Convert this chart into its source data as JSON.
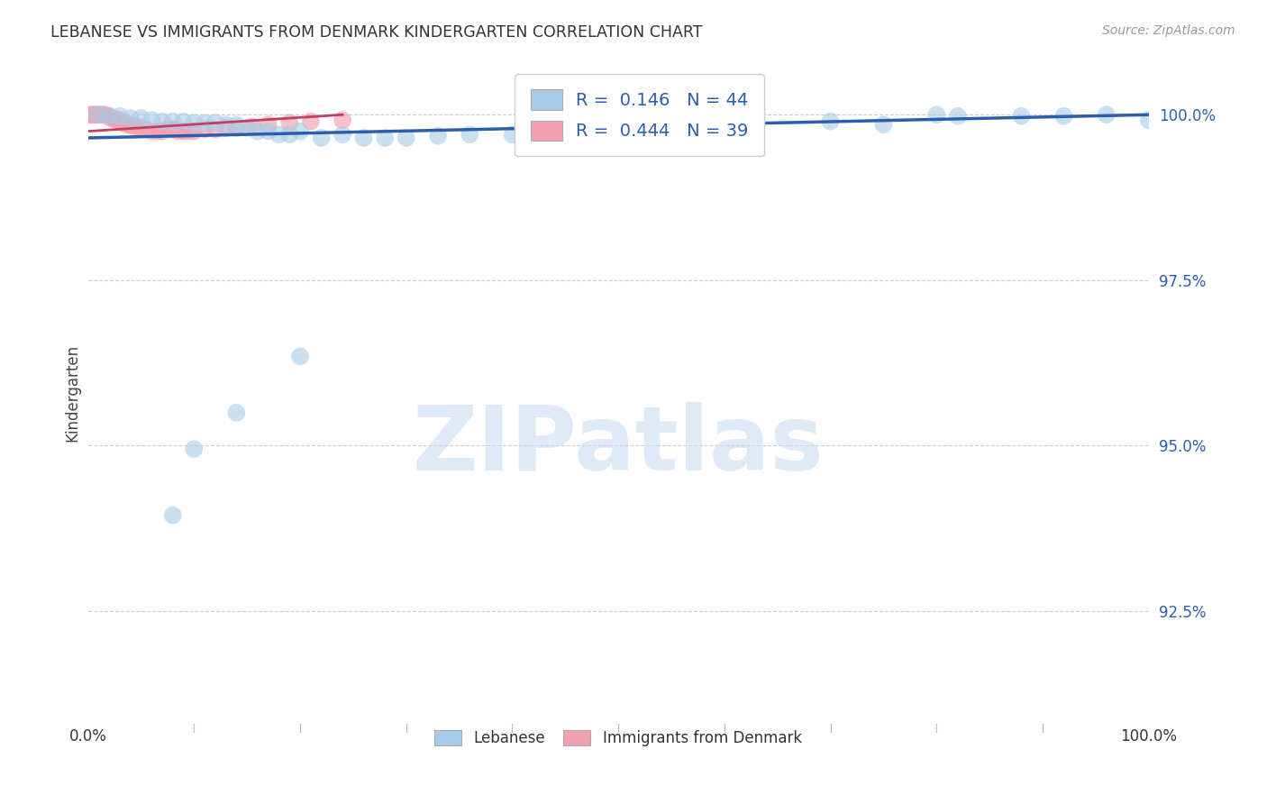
{
  "title": "LEBANESE VS IMMIGRANTS FROM DENMARK KINDERGARTEN CORRELATION CHART",
  "source": "Source: ZipAtlas.com",
  "ylabel": "Kindergarten",
  "ytick_labels": [
    "100.0%",
    "97.5%",
    "95.0%",
    "92.5%"
  ],
  "ytick_values": [
    1.0,
    0.975,
    0.95,
    0.925
  ],
  "xlim": [
    0.0,
    1.0
  ],
  "ylim": [
    0.908,
    1.008
  ],
  "legend_blue_R": "0.146",
  "legend_blue_N": "44",
  "legend_pink_R": "0.444",
  "legend_pink_N": "39",
  "blue_color": "#a8cce8",
  "pink_color": "#f4a0b0",
  "trend_blue_color": "#2b5fad",
  "trend_pink_color": "#c04060",
  "blue_scatter_x": [
    0.01,
    0.02,
    0.03,
    0.04,
    0.05,
    0.06,
    0.07,
    0.08,
    0.09,
    0.1,
    0.11,
    0.12,
    0.13,
    0.14,
    0.15,
    0.16,
    0.17,
    0.18,
    0.19,
    0.2,
    0.22,
    0.24,
    0.26,
    0.28,
    0.3,
    0.33,
    0.36,
    0.4,
    0.55,
    0.63,
    0.7,
    0.75,
    0.8,
    0.82,
    0.88,
    0.92,
    0.96,
    1.0,
    0.45,
    0.5,
    0.2,
    0.14,
    0.1,
    0.08
  ],
  "blue_scatter_y": [
    1.0,
    0.9998,
    0.9998,
    0.9995,
    0.9995,
    0.9992,
    0.999,
    0.999,
    0.999,
    0.9988,
    0.9988,
    0.9988,
    0.9985,
    0.9985,
    0.998,
    0.9975,
    0.9975,
    0.997,
    0.997,
    0.9975,
    0.9965,
    0.997,
    0.9965,
    0.9965,
    0.9965,
    0.9968,
    0.997,
    0.997,
    0.998,
    0.998,
    0.999,
    0.9985,
    1.0,
    0.9998,
    0.9998,
    0.9998,
    1.0,
    0.9992,
    0.9968,
    0.9965,
    0.9635,
    0.955,
    0.9495,
    0.9395
  ],
  "pink_scatter_x": [
    0.002,
    0.004,
    0.006,
    0.008,
    0.01,
    0.012,
    0.014,
    0.016,
    0.018,
    0.02,
    0.022,
    0.025,
    0.028,
    0.03,
    0.033,
    0.036,
    0.04,
    0.043,
    0.047,
    0.05,
    0.055,
    0.06,
    0.065,
    0.07,
    0.075,
    0.08,
    0.085,
    0.09,
    0.095,
    0.1,
    0.11,
    0.12,
    0.13,
    0.14,
    0.155,
    0.17,
    0.19,
    0.21,
    0.24
  ],
  "pink_scatter_y": [
    1.0,
    1.0,
    1.0,
    1.0,
    1.0,
    1.0,
    1.0,
    1.0,
    0.9998,
    0.9998,
    0.9995,
    0.9993,
    0.9993,
    0.999,
    0.9988,
    0.9985,
    0.9985,
    0.9982,
    0.9982,
    0.998,
    0.9978,
    0.9975,
    0.9975,
    0.9975,
    0.9978,
    0.9978,
    0.9975,
    0.9975,
    0.9975,
    0.9975,
    0.9978,
    0.9978,
    0.998,
    0.998,
    0.9982,
    0.9985,
    0.9988,
    0.999,
    0.9992
  ],
  "blue_trend_x": [
    0.0,
    1.0
  ],
  "blue_trend_y": [
    0.9965,
    1.0
  ],
  "pink_trend_x": [
    0.0,
    0.24
  ],
  "pink_trend_y": [
    0.9975,
    1.0
  ],
  "watermark_text": "ZIPatlas",
  "watermark_color": "#c8dff0",
  "background_color": "#ffffff",
  "grid_color": "#cccccc",
  "title_color": "#333333",
  "source_color": "#999999",
  "ylabel_color": "#444444",
  "xtick_end_color": "#333333",
  "ytick_color": "#2b5fad",
  "legend_text_color": "#2b5fad",
  "legend_edge_color": "#cccccc"
}
